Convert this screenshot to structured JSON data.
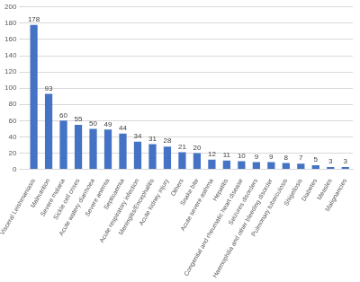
{
  "chart_data": {
    "type": "bar",
    "categories": [
      "Visceral Leishmaniasis",
      "Malnutrition",
      "Severe malaria",
      "Sickle cell crises",
      "Acute watery diarrhoea",
      "Severe anemia",
      "Septicaemia",
      "Acute respiratory infection",
      "Meningitis/Encephalitis",
      "Acute kidney injury",
      "Others",
      "Snake bite",
      "Acute severe asthma",
      "Hepatitis",
      "Congenital and rheumatic heart disease",
      "Seizures disorders",
      "Haemophilia and other bleeding disorder",
      "Pulmonary tuberculosis",
      "Shigellosis",
      "Diabetes",
      "Measles",
      "Malignancies"
    ],
    "values": [
      178,
      93,
      60,
      55,
      50,
      49,
      44,
      34,
      31,
      28,
      21,
      20,
      12,
      11,
      10,
      9,
      9,
      8,
      7,
      5,
      3,
      3
    ],
    "color": "#4472c4",
    "ylim": [
      0,
      200
    ],
    "yticks": [
      0,
      20,
      40,
      60,
      80,
      100,
      120,
      140,
      160,
      180,
      200
    ],
    "grid": true,
    "data_labels": true
  }
}
